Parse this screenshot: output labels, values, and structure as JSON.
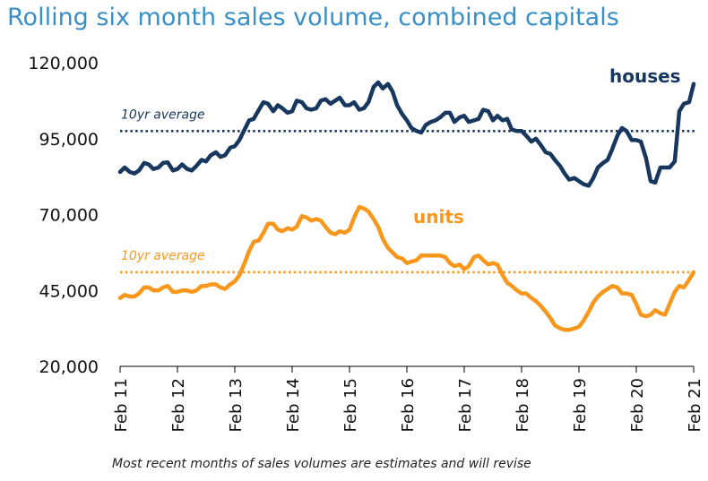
{
  "title": "Rolling six month sales volume, combined capitals",
  "footnote": "Most recent months of sales volumes are estimates and will revise",
  "colors": {
    "houses": "#17375e",
    "units": "#f7981d",
    "title": "#3a8fc7",
    "axis": "#000000"
  },
  "chart_data": {
    "type": "line",
    "title": "Rolling six month sales volume, combined capitals",
    "xlabel": "",
    "ylabel": "",
    "ylim": [
      20000,
      120000
    ],
    "yticks": [
      20000,
      45000,
      70000,
      95000,
      120000
    ],
    "ytick_labels": [
      "20,000",
      "45,000",
      "70,000",
      "95,000",
      "120,000"
    ],
    "x_range": [
      "Feb 11",
      "Feb 21"
    ],
    "xtick_labels": [
      "Feb 11",
      "Feb 12",
      "Feb 13",
      "Feb 14",
      "Feb 15",
      "Feb 16",
      "Feb 17",
      "Feb 18",
      "Feb 19",
      "Feb 20",
      "Feb 21"
    ],
    "grid": false,
    "series": [
      {
        "name": "houses",
        "points": [
          [
            0,
            84000
          ],
          [
            0.08,
            85500
          ],
          [
            0.17,
            84000
          ],
          [
            0.25,
            83500
          ],
          [
            0.33,
            84500
          ],
          [
            0.42,
            87000
          ],
          [
            0.5,
            86500
          ],
          [
            0.58,
            85000
          ],
          [
            0.67,
            85500
          ],
          [
            0.75,
            87000
          ],
          [
            0.83,
            87200
          ],
          [
            0.92,
            84500
          ],
          [
            1.0,
            85000
          ],
          [
            1.08,
            86500
          ],
          [
            1.17,
            85000
          ],
          [
            1.25,
            84500
          ],
          [
            1.33,
            86000
          ],
          [
            1.42,
            88000
          ],
          [
            1.5,
            87500
          ],
          [
            1.58,
            89500
          ],
          [
            1.67,
            90500
          ],
          [
            1.75,
            89000
          ],
          [
            1.83,
            89500
          ],
          [
            1.92,
            92000
          ],
          [
            2.0,
            92500
          ],
          [
            2.08,
            94500
          ],
          [
            2.17,
            98000
          ],
          [
            2.25,
            101000
          ],
          [
            2.33,
            101500
          ],
          [
            2.42,
            104500
          ],
          [
            2.5,
            107000
          ],
          [
            2.58,
            106500
          ],
          [
            2.67,
            104000
          ],
          [
            2.75,
            106000
          ],
          [
            2.83,
            105000
          ],
          [
            2.92,
            103500
          ],
          [
            3.0,
            104000
          ],
          [
            3.08,
            107500
          ],
          [
            3.17,
            107000
          ],
          [
            3.25,
            105000
          ],
          [
            3.33,
            104500
          ],
          [
            3.42,
            105000
          ],
          [
            3.5,
            107500
          ],
          [
            3.58,
            108000
          ],
          [
            3.67,
            106500
          ],
          [
            3.75,
            107500
          ],
          [
            3.83,
            108500
          ],
          [
            3.92,
            106000
          ],
          [
            4.0,
            106000
          ],
          [
            4.08,
            107000
          ],
          [
            4.17,
            104500
          ],
          [
            4.25,
            105000
          ],
          [
            4.33,
            107000
          ],
          [
            4.42,
            112000
          ],
          [
            4.5,
            113500
          ],
          [
            4.58,
            111500
          ],
          [
            4.67,
            113000
          ],
          [
            4.75,
            110500
          ],
          [
            4.83,
            106000
          ],
          [
            4.92,
            103000
          ],
          [
            5.0,
            101000
          ],
          [
            5.08,
            98500
          ],
          [
            5.17,
            97500
          ],
          [
            5.25,
            97000
          ],
          [
            5.33,
            99500
          ],
          [
            5.42,
            100500
          ],
          [
            5.5,
            101000
          ],
          [
            5.58,
            102000
          ],
          [
            5.67,
            103500
          ],
          [
            5.75,
            103500
          ],
          [
            5.83,
            100500
          ],
          [
            5.92,
            102000
          ],
          [
            6.0,
            102500
          ],
          [
            6.08,
            100500
          ],
          [
            6.17,
            101000
          ],
          [
            6.25,
            101500
          ],
          [
            6.33,
            104500
          ],
          [
            6.42,
            104000
          ],
          [
            6.5,
            101000
          ],
          [
            6.58,
            102500
          ],
          [
            6.67,
            101000
          ],
          [
            6.75,
            101500
          ],
          [
            6.83,
            98000
          ],
          [
            6.92,
            97500
          ],
          [
            7.0,
            97500
          ],
          [
            7.08,
            96000
          ],
          [
            7.17,
            94000
          ],
          [
            7.25,
            95000
          ],
          [
            7.33,
            93000
          ],
          [
            7.42,
            90500
          ],
          [
            7.5,
            90000
          ],
          [
            7.58,
            88000
          ],
          [
            7.67,
            86000
          ],
          [
            7.75,
            83500
          ],
          [
            7.83,
            81500
          ],
          [
            7.92,
            82000
          ],
          [
            8.0,
            81000
          ],
          [
            8.08,
            80000
          ],
          [
            8.17,
            79500
          ],
          [
            8.25,
            82000
          ],
          [
            8.33,
            85500
          ],
          [
            8.42,
            87000
          ],
          [
            8.5,
            88000
          ],
          [
            8.58,
            91500
          ],
          [
            8.67,
            96000
          ],
          [
            8.75,
            98500
          ],
          [
            8.83,
            97500
          ],
          [
            8.92,
            94500
          ],
          [
            9.0,
            94500
          ],
          [
            9.08,
            94000
          ],
          [
            9.17,
            88500
          ],
          [
            9.25,
            81000
          ],
          [
            9.33,
            80500
          ],
          [
            9.42,
            85500
          ],
          [
            9.5,
            85500
          ],
          [
            9.58,
            85500
          ],
          [
            9.67,
            87500
          ],
          [
            9.75,
            104000
          ],
          [
            9.83,
            106500
          ],
          [
            9.92,
            107000
          ],
          [
            10.0,
            113000
          ]
        ]
      },
      {
        "name": "units",
        "points": [
          [
            0,
            42500
          ],
          [
            0.08,
            43500
          ],
          [
            0.17,
            43000
          ],
          [
            0.25,
            43000
          ],
          [
            0.33,
            44000
          ],
          [
            0.42,
            46000
          ],
          [
            0.5,
            46000
          ],
          [
            0.58,
            45000
          ],
          [
            0.67,
            45000
          ],
          [
            0.75,
            46000
          ],
          [
            0.83,
            46500
          ],
          [
            0.92,
            44500
          ],
          [
            1.0,
            44500
          ],
          [
            1.08,
            45000
          ],
          [
            1.17,
            45000
          ],
          [
            1.25,
            44500
          ],
          [
            1.33,
            45000
          ],
          [
            1.42,
            46500
          ],
          [
            1.5,
            46500
          ],
          [
            1.58,
            47000
          ],
          [
            1.67,
            47000
          ],
          [
            1.75,
            46000
          ],
          [
            1.83,
            45500
          ],
          [
            1.92,
            47000
          ],
          [
            2.0,
            48000
          ],
          [
            2.08,
            50000
          ],
          [
            2.17,
            54000
          ],
          [
            2.25,
            58000
          ],
          [
            2.33,
            61000
          ],
          [
            2.42,
            61500
          ],
          [
            2.5,
            64000
          ],
          [
            2.58,
            67000
          ],
          [
            2.67,
            67000
          ],
          [
            2.75,
            65000
          ],
          [
            2.83,
            64500
          ],
          [
            2.92,
            65500
          ],
          [
            3.0,
            65000
          ],
          [
            3.08,
            66000
          ],
          [
            3.17,
            69500
          ],
          [
            3.25,
            69000
          ],
          [
            3.33,
            68000
          ],
          [
            3.42,
            68500
          ],
          [
            3.5,
            68000
          ],
          [
            3.58,
            66000
          ],
          [
            3.67,
            64000
          ],
          [
            3.75,
            63500
          ],
          [
            3.83,
            64500
          ],
          [
            3.92,
            64000
          ],
          [
            4.0,
            65000
          ],
          [
            4.08,
            69000
          ],
          [
            4.17,
            72500
          ],
          [
            4.25,
            72000
          ],
          [
            4.33,
            71000
          ],
          [
            4.42,
            68500
          ],
          [
            4.5,
            66000
          ],
          [
            4.58,
            62000
          ],
          [
            4.67,
            59000
          ],
          [
            4.75,
            57500
          ],
          [
            4.83,
            56000
          ],
          [
            4.92,
            55500
          ],
          [
            5.0,
            54000
          ],
          [
            5.08,
            54500
          ],
          [
            5.17,
            55000
          ],
          [
            5.25,
            56500
          ],
          [
            5.33,
            56500
          ],
          [
            5.42,
            56500
          ],
          [
            5.5,
            56500
          ],
          [
            5.58,
            56500
          ],
          [
            5.67,
            56000
          ],
          [
            5.75,
            54000
          ],
          [
            5.83,
            53000
          ],
          [
            5.92,
            53500
          ],
          [
            6.0,
            52000
          ],
          [
            6.08,
            53000
          ],
          [
            6.17,
            56000
          ],
          [
            6.25,
            56500
          ],
          [
            6.33,
            55000
          ],
          [
            6.42,
            53500
          ],
          [
            6.5,
            54000
          ],
          [
            6.58,
            53500
          ],
          [
            6.67,
            50000
          ],
          [
            6.75,
            47500
          ],
          [
            6.83,
            46500
          ],
          [
            6.92,
            45000
          ],
          [
            7.0,
            44000
          ],
          [
            7.08,
            44000
          ],
          [
            7.17,
            42500
          ],
          [
            7.25,
            41500
          ],
          [
            7.33,
            40000
          ],
          [
            7.42,
            38000
          ],
          [
            7.5,
            36000
          ],
          [
            7.58,
            33500
          ],
          [
            7.67,
            32500
          ],
          [
            7.75,
            32000
          ],
          [
            7.83,
            32000
          ],
          [
            7.92,
            32500
          ],
          [
            8.0,
            33000
          ],
          [
            8.08,
            35000
          ],
          [
            8.17,
            38000
          ],
          [
            8.25,
            41000
          ],
          [
            8.33,
            43000
          ],
          [
            8.42,
            44500
          ],
          [
            8.5,
            45500
          ],
          [
            8.58,
            46500
          ],
          [
            8.67,
            46000
          ],
          [
            8.75,
            44000
          ],
          [
            8.83,
            44000
          ],
          [
            8.92,
            43500
          ],
          [
            9.0,
            40500
          ],
          [
            9.08,
            37000
          ],
          [
            9.17,
            36500
          ],
          [
            9.25,
            37000
          ],
          [
            9.33,
            38500
          ],
          [
            9.42,
            37500
          ],
          [
            9.5,
            37000
          ],
          [
            9.58,
            40500
          ],
          [
            9.67,
            44500
          ],
          [
            9.75,
            46500
          ],
          [
            9.83,
            46000
          ],
          [
            9.92,
            48500
          ],
          [
            10.0,
            51000
          ]
        ]
      }
    ],
    "annotations": [
      {
        "text": "houses",
        "series": "houses"
      },
      {
        "text": "units",
        "series": "units"
      },
      {
        "text": "10yr average",
        "series": "houses",
        "value": 97500
      },
      {
        "text": "10yr average",
        "series": "units",
        "value": 51000
      }
    ]
  }
}
